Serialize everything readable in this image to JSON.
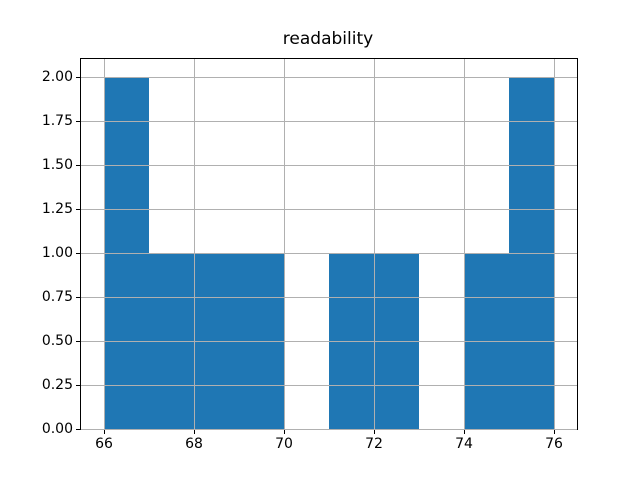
{
  "figure": {
    "background": "#ffffff"
  },
  "chart_data": {
    "type": "bar",
    "subtype": "histogram",
    "title": "readability",
    "xlabel": "",
    "ylabel": "",
    "bin_edges": [
      66,
      67,
      68,
      69,
      70,
      71,
      72,
      73,
      74,
      75,
      76
    ],
    "counts": [
      2,
      1,
      1,
      1,
      0,
      1,
      1,
      0,
      1,
      2
    ],
    "xlim": [
      65.5,
      76.5
    ],
    "ylim": [
      0,
      2.1
    ],
    "xticks": [
      66,
      68,
      70,
      72,
      74,
      76
    ],
    "xtick_labels": [
      "66",
      "68",
      "70",
      "72",
      "74",
      "76"
    ],
    "yticks": [
      0,
      0.25,
      0.5,
      0.75,
      1.0,
      1.25,
      1.5,
      1.75,
      2.0
    ],
    "ytick_labels": [
      "0.00",
      "0.25",
      "0.50",
      "0.75",
      "1.00",
      "1.25",
      "1.50",
      "1.75",
      "2.00"
    ],
    "grid": true,
    "grid_over_bars": true,
    "legend": null,
    "bar_color": "#1f77b4",
    "grid_color": "#b0b0b0",
    "spine_color": "#000000",
    "tick_color": "#000000"
  }
}
